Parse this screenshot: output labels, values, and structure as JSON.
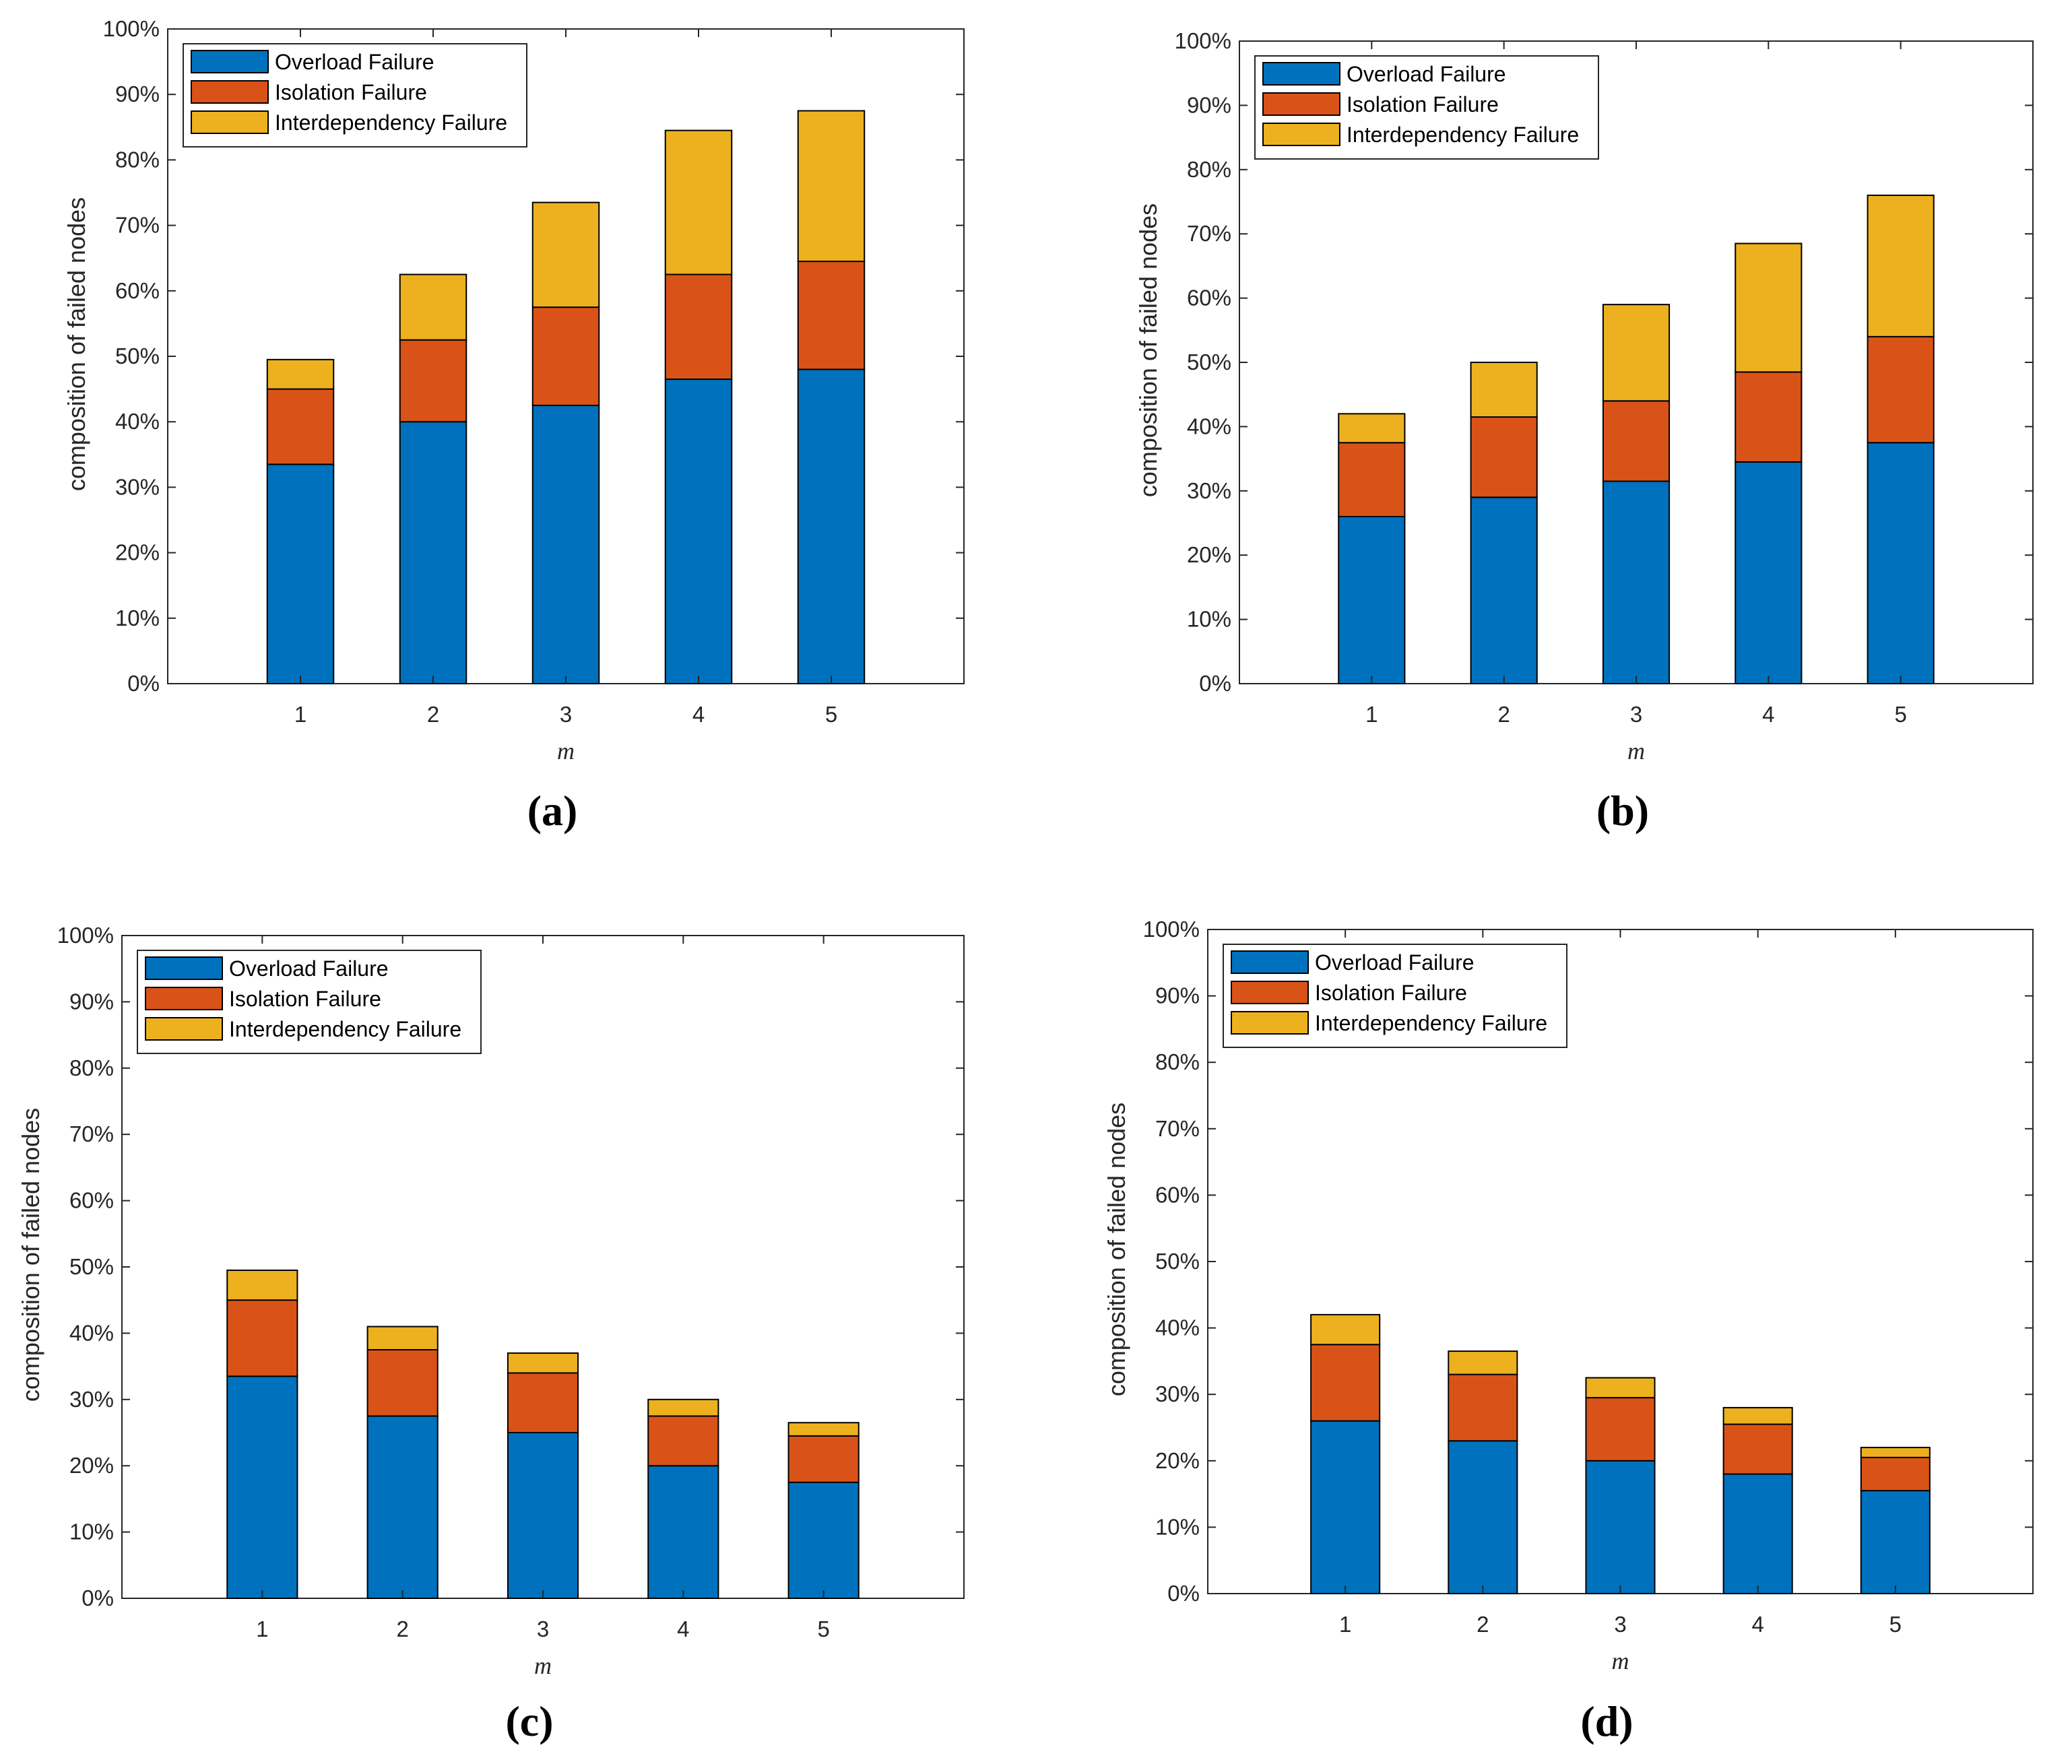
{
  "figure": {
    "legend_colors": [
      "#0072BD",
      "#D95319",
      "#EDB120"
    ]
  },
  "chart_data": [
    {
      "type": "bar",
      "stacked": true,
      "panel_label": "(a)",
      "categories": [
        "1",
        "2",
        "3",
        "4",
        "5"
      ],
      "series": [
        {
          "name": "Overload Failure",
          "color": "#0072BD",
          "values": [
            33.5,
            40,
            42.5,
            46.5,
            48
          ]
        },
        {
          "name": "Isolation Failure",
          "color": "#D95319",
          "values": [
            11.5,
            12.5,
            15,
            16,
            16.5
          ]
        },
        {
          "name": "Interdependency Failure",
          "color": "#EDB120",
          "values": [
            4.5,
            10,
            16,
            22,
            23
          ]
        }
      ],
      "xlabel": "m",
      "ylabel": "composition of failed nodes",
      "ylim": [
        0,
        100
      ],
      "yticks": [
        "0%",
        "10%",
        "20%",
        "30%",
        "40%",
        "50%",
        "60%",
        "70%",
        "80%",
        "90%",
        "100%"
      ],
      "legend_position": "top-left",
      "grid": false
    },
    {
      "type": "bar",
      "stacked": true,
      "panel_label": "(b)",
      "categories": [
        "1",
        "2",
        "3",
        "4",
        "5"
      ],
      "series": [
        {
          "name": "Overload Failure",
          "color": "#0072BD",
          "values": [
            26,
            29,
            31.5,
            34.5,
            37.5
          ]
        },
        {
          "name": "Isolation Failure",
          "color": "#D95319",
          "values": [
            11.5,
            12.5,
            12.5,
            14,
            16.5
          ]
        },
        {
          "name": "Interdependency Failure",
          "color": "#EDB120",
          "values": [
            4.5,
            8.5,
            15,
            20,
            22
          ]
        }
      ],
      "xlabel": "m",
      "ylabel": "composition of failed nodes",
      "ylim": [
        0,
        100
      ],
      "yticks": [
        "0%",
        "10%",
        "20%",
        "30%",
        "40%",
        "50%",
        "60%",
        "70%",
        "80%",
        "90%",
        "100%"
      ],
      "legend_position": "top-left",
      "grid": false
    },
    {
      "type": "bar",
      "stacked": true,
      "panel_label": "(c)",
      "categories": [
        "1",
        "2",
        "3",
        "4",
        "5"
      ],
      "series": [
        {
          "name": "Overload Failure",
          "color": "#0072BD",
          "values": [
            33.5,
            27.5,
            25,
            20,
            17.5
          ]
        },
        {
          "name": "Isolation Failure",
          "color": "#D95319",
          "values": [
            11.5,
            10,
            9,
            7.5,
            7
          ]
        },
        {
          "name": "Interdependency Failure",
          "color": "#EDB120",
          "values": [
            4.5,
            3.5,
            3,
            2.5,
            2
          ]
        }
      ],
      "xlabel": "m",
      "ylabel": "composition of failed nodes",
      "ylim": [
        0,
        100
      ],
      "yticks": [
        "0%",
        "10%",
        "20%",
        "30%",
        "40%",
        "50%",
        "60%",
        "70%",
        "80%",
        "90%",
        "100%"
      ],
      "legend_position": "top-left",
      "grid": false
    },
    {
      "type": "bar",
      "stacked": true,
      "panel_label": "(d)",
      "categories": [
        "1",
        "2",
        "3",
        "4",
        "5"
      ],
      "series": [
        {
          "name": "Overload Failure",
          "color": "#0072BD",
          "values": [
            26,
            23,
            20,
            18,
            15.5
          ]
        },
        {
          "name": "Isolation Failure",
          "color": "#D95319",
          "values": [
            11.5,
            10,
            9.5,
            7.5,
            5
          ]
        },
        {
          "name": "Interdependency Failure",
          "color": "#EDB120",
          "values": [
            4.5,
            3.5,
            3,
            2.5,
            1.5
          ]
        }
      ],
      "xlabel": "m",
      "ylabel": "composition of failed nodes",
      "ylim": [
        0,
        100
      ],
      "yticks": [
        "0%",
        "10%",
        "20%",
        "30%",
        "40%",
        "50%",
        "60%",
        "70%",
        "80%",
        "90%",
        "100%"
      ],
      "legend_position": "top-left",
      "grid": false
    }
  ]
}
